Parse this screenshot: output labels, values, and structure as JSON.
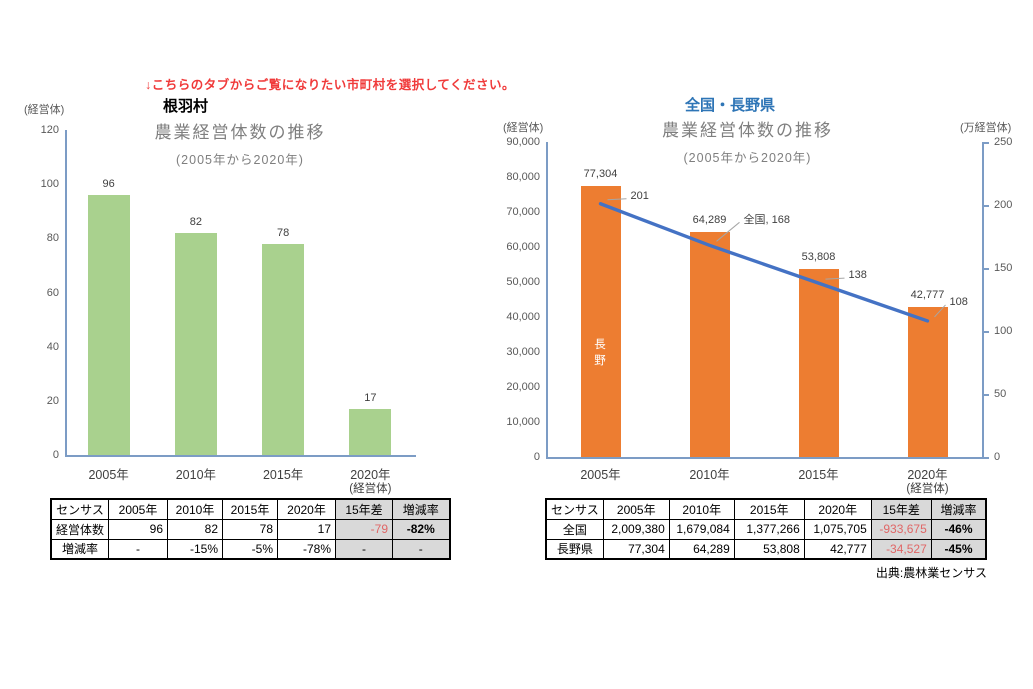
{
  "instruction": {
    "text": "↓こちらのタブからご覧になりたい市町村を選択してください。",
    "color": "#f03a3a"
  },
  "chart_data": [
    {
      "id": "neba-village",
      "type": "bar",
      "region_label": "根羽村",
      "title": "農業経営体数の推移",
      "subtitle": "(2005年から2020年)",
      "y_unit_label": "(経営体)",
      "x_unit_note": "(経営体)",
      "categories": [
        "2005年",
        "2010年",
        "2015年",
        "2020年"
      ],
      "values": [
        96,
        82,
        78,
        17
      ],
      "value_labels": [
        "96",
        "82",
        "78",
        "17"
      ],
      "ylim": [
        0,
        120
      ],
      "ytick_step": 20,
      "bar_color": "#A9D18E",
      "grid": false,
      "legend_position": "none"
    },
    {
      "id": "national-nagano",
      "type": "bar+line",
      "region_label": "全国・長野県",
      "region_label_color": "#2E75B6",
      "title": "農業経営体数の推移",
      "subtitle": "(2005年から2020年)",
      "y_unit_label_left": "(経営体)",
      "y_unit_label_right": "(万経営体)",
      "x_unit_note": "(経営体)",
      "categories": [
        "2005年",
        "2010年",
        "2015年",
        "2020年"
      ],
      "series": [
        {
          "name": "長野",
          "type": "bar",
          "axis": "left",
          "values": [
            77304,
            64289,
            53808,
            42777
          ],
          "value_labels": [
            "77,304",
            "64,289",
            "53,808",
            "42,777"
          ],
          "color": "#ED7D31",
          "in_bar_label": "長\n野"
        },
        {
          "name": "全国",
          "type": "line",
          "axis": "right",
          "values": [
            201,
            168,
            138,
            108
          ],
          "value_labels": [
            "201",
            "全国, 168",
            "138",
            "108"
          ],
          "color": "#4472C4"
        }
      ],
      "ylim_left": [
        0,
        90000
      ],
      "ytick_step_left": 10000,
      "ylim_right": [
        0,
        250
      ],
      "ytick_step_right": 50,
      "grid": false,
      "legend_position": "none"
    }
  ],
  "tables": [
    {
      "headers": [
        "センサス",
        "2005年",
        "2010年",
        "2015年",
        "2020年",
        "15年差",
        "増減率"
      ],
      "rows": [
        [
          "経営体数",
          "96",
          "82",
          "78",
          "17",
          "-79",
          "-82%"
        ],
        [
          "増減率",
          "-",
          "-15%",
          "-5%",
          "-78%",
          "-",
          "-"
        ]
      ]
    },
    {
      "headers": [
        "センサス",
        "2005年",
        "2010年",
        "2015年",
        "2020年",
        "15年差",
        "増減率"
      ],
      "rows": [
        [
          "全国",
          "2,009,380",
          "1,679,084",
          "1,377,266",
          "1,075,705",
          "-933,675",
          "-46%"
        ],
        [
          "長野県",
          "77,304",
          "64,289",
          "53,808",
          "42,777",
          "-34,527",
          "-45%"
        ]
      ]
    }
  ],
  "source_note": "出典:農林業センサス",
  "colors": {
    "bar_green": "#A9D18E",
    "bar_orange": "#ED7D31",
    "line_blue": "#4472C4",
    "axis_line": "#7C9CC5",
    "tick_text": "#595959",
    "title_gray": "#7F7F7F",
    "table_gray": "#D9D9D9",
    "negative_red": "#E06666",
    "region_blue": "#2E75B6"
  }
}
